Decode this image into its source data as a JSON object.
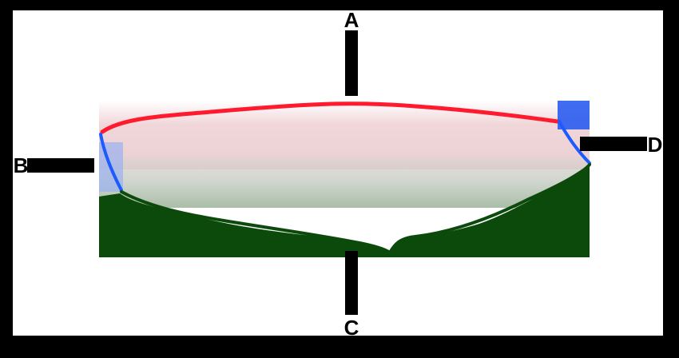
{
  "labels": {
    "top": "A",
    "left": "B",
    "right": "D",
    "bottom": "C"
  },
  "colors": {
    "frame_border": "#000000",
    "panel_background": "#ffffff",
    "top_curve": "#ff1a2e",
    "top_fill": "#e8c4c8",
    "side_curves": "#1e5bff",
    "bottom_curve": "#0c4a0c",
    "bottom_fill": "#0c4a0c",
    "mid_fill": "#a4b4a0",
    "axis": "#000000"
  }
}
